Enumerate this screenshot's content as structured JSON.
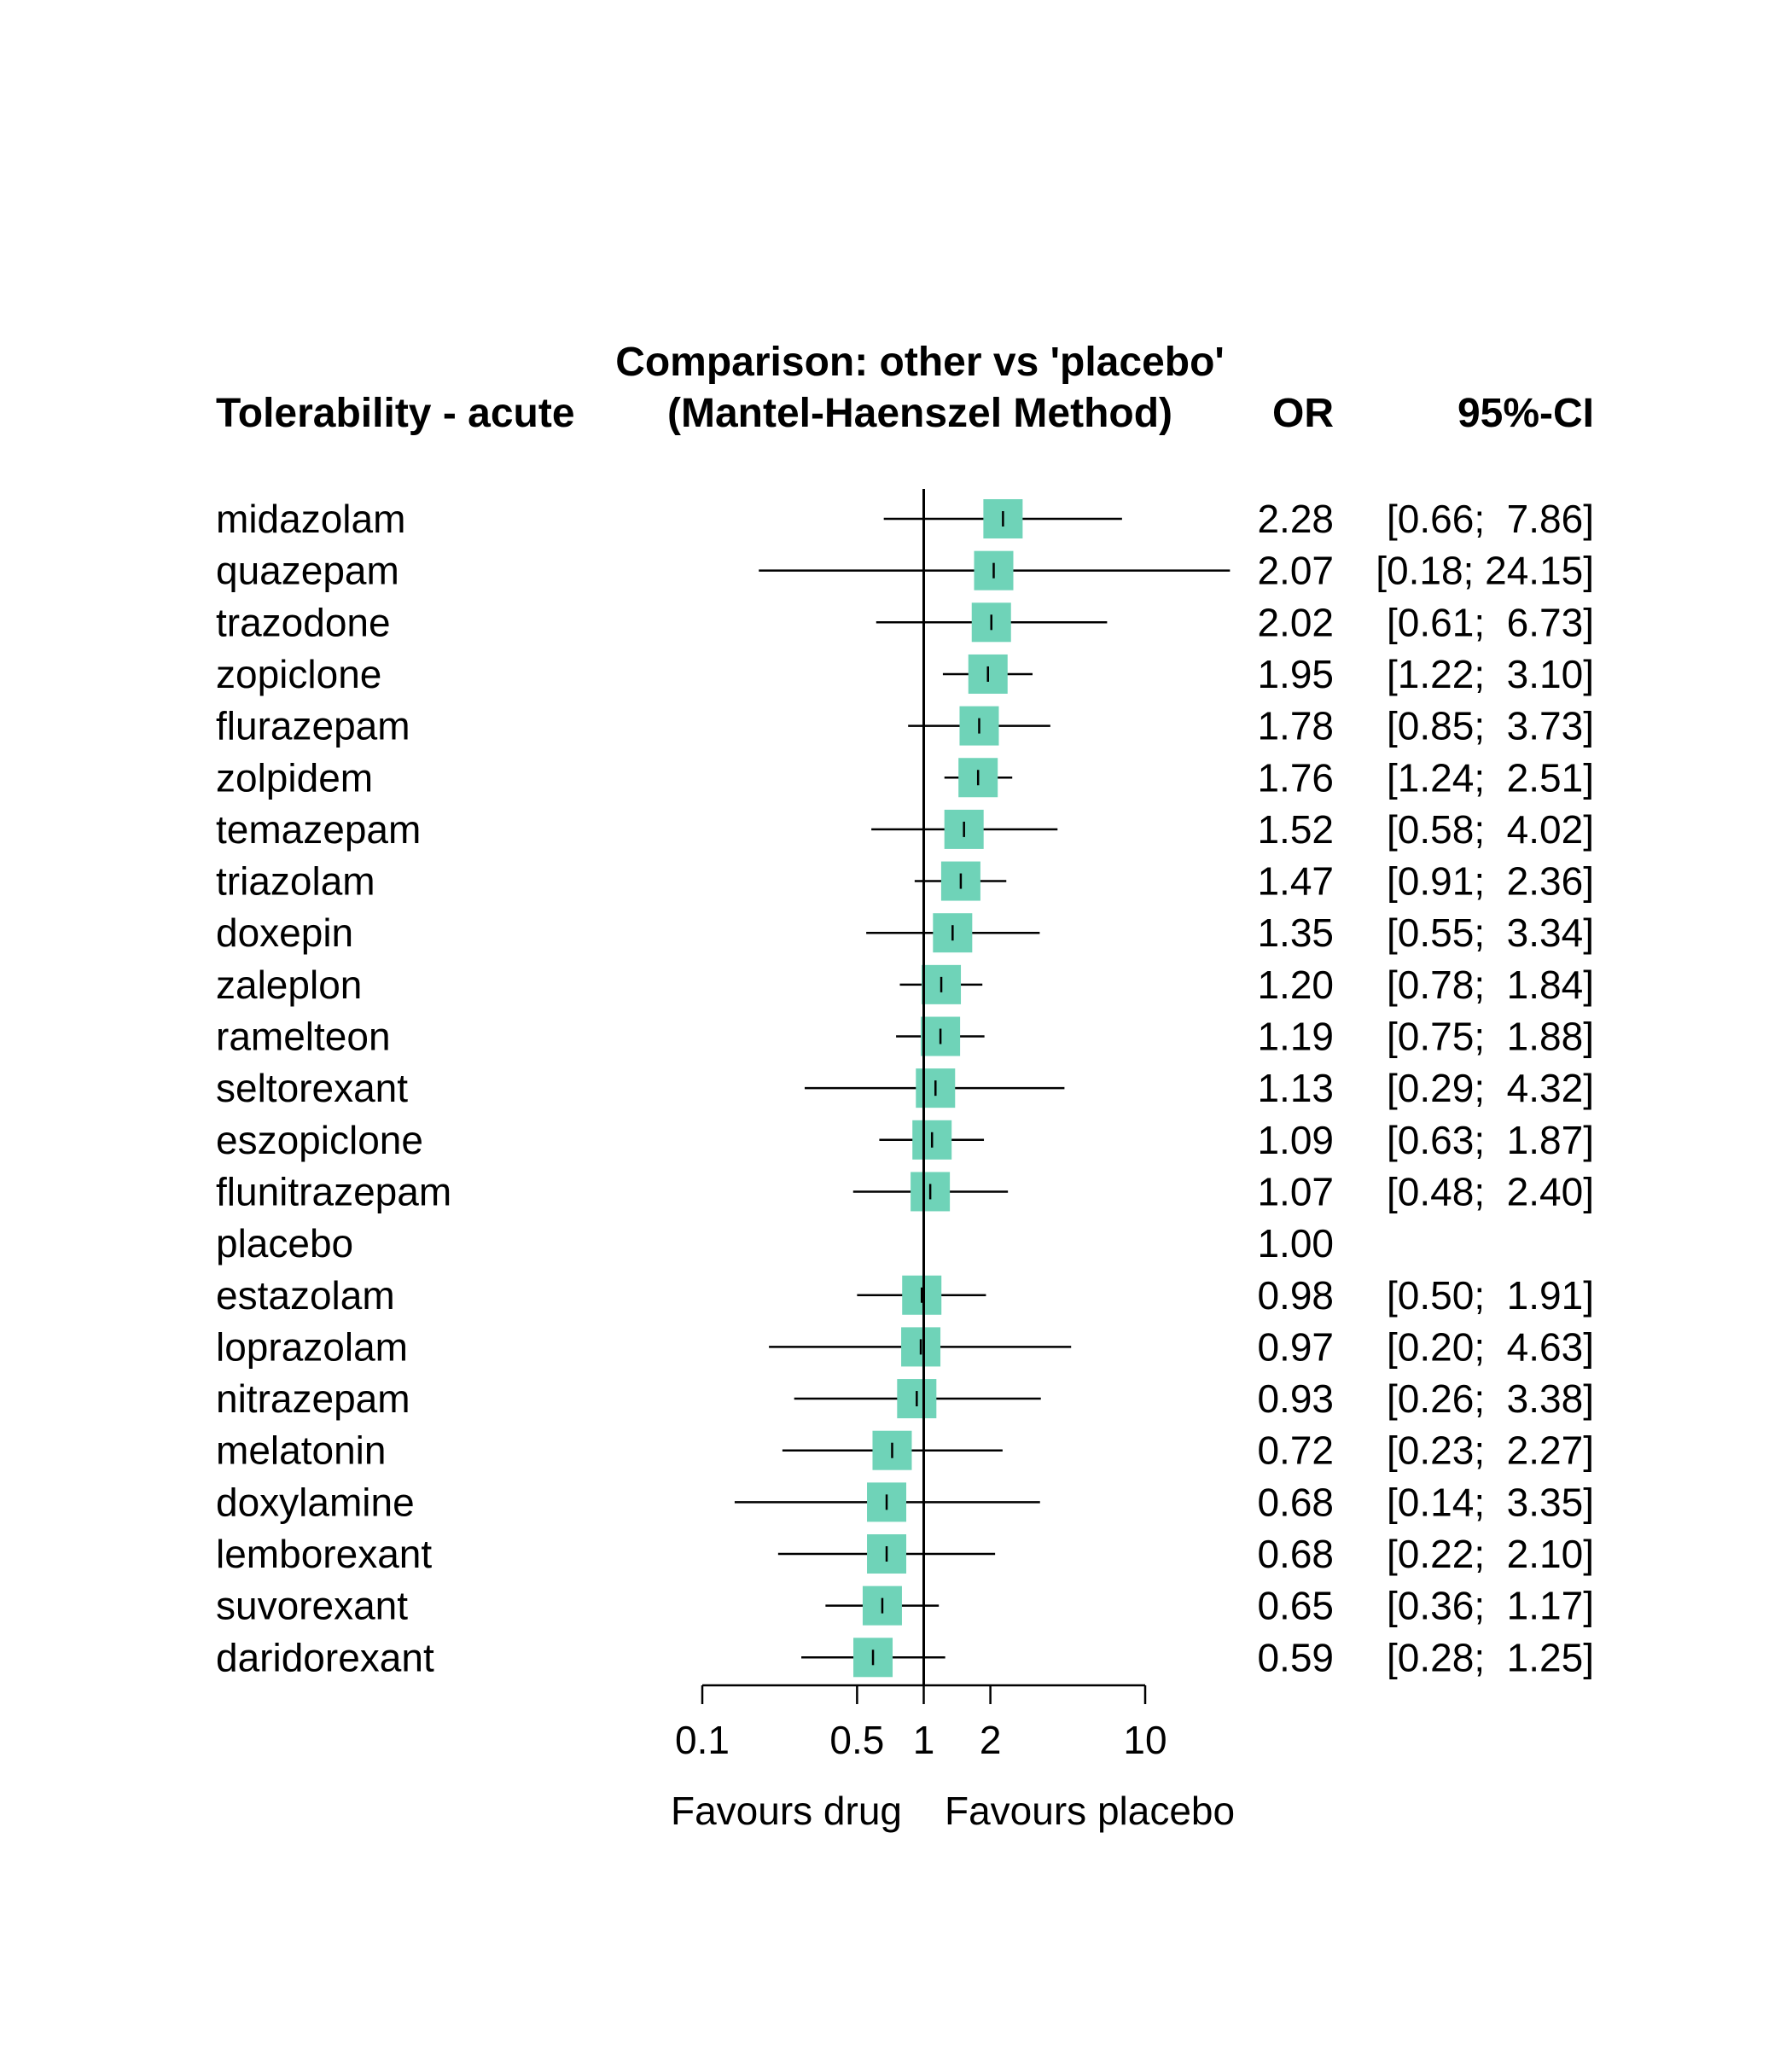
{
  "chart_data": {
    "type": "forest",
    "title": "Comparison: other vs 'placebo'",
    "subtitle": "(Mantel-Haenszel Method)",
    "left_header": "Tolerability - acute",
    "or_header": "OR",
    "ci_header": "95%-CI",
    "x_scale": "log",
    "xlim": [
      0.1,
      10
    ],
    "x_ticks": [
      {
        "value": 0.1,
        "label": "0.1"
      },
      {
        "value": 0.5,
        "label": "0.5"
      },
      {
        "value": 1,
        "label": "1"
      },
      {
        "value": 2,
        "label": "2"
      },
      {
        "value": 10,
        "label": "10"
      }
    ],
    "reference_line": 1,
    "xlabel_left": "Favours drug",
    "xlabel_right": "Favours placebo",
    "box_color": "#6fd3b8",
    "rows": [
      {
        "name": "midazolam",
        "or": 2.28,
        "lower": 0.66,
        "upper": 7.86,
        "or_text": "2.28",
        "ci_text": "[0.66;  7.86]"
      },
      {
        "name": "quazepam",
        "or": 2.07,
        "lower": 0.18,
        "upper": 24.15,
        "or_text": "2.07",
        "ci_text": "[0.18; 24.15]"
      },
      {
        "name": "trazodone",
        "or": 2.02,
        "lower": 0.61,
        "upper": 6.73,
        "or_text": "2.02",
        "ci_text": "[0.61;  6.73]"
      },
      {
        "name": "zopiclone",
        "or": 1.95,
        "lower": 1.22,
        "upper": 3.1,
        "or_text": "1.95",
        "ci_text": "[1.22;  3.10]"
      },
      {
        "name": "flurazepam",
        "or": 1.78,
        "lower": 0.85,
        "upper": 3.73,
        "or_text": "1.78",
        "ci_text": "[0.85;  3.73]"
      },
      {
        "name": "zolpidem",
        "or": 1.76,
        "lower": 1.24,
        "upper": 2.51,
        "or_text": "1.76",
        "ci_text": "[1.24;  2.51]"
      },
      {
        "name": "temazepam",
        "or": 1.52,
        "lower": 0.58,
        "upper": 4.02,
        "or_text": "1.52",
        "ci_text": "[0.58;  4.02]"
      },
      {
        "name": "triazolam",
        "or": 1.47,
        "lower": 0.91,
        "upper": 2.36,
        "or_text": "1.47",
        "ci_text": "[0.91;  2.36]"
      },
      {
        "name": "doxepin",
        "or": 1.35,
        "lower": 0.55,
        "upper": 3.34,
        "or_text": "1.35",
        "ci_text": "[0.55;  3.34]"
      },
      {
        "name": "zaleplon",
        "or": 1.2,
        "lower": 0.78,
        "upper": 1.84,
        "or_text": "1.20",
        "ci_text": "[0.78;  1.84]"
      },
      {
        "name": "ramelteon",
        "or": 1.19,
        "lower": 0.75,
        "upper": 1.88,
        "or_text": "1.19",
        "ci_text": "[0.75;  1.88]"
      },
      {
        "name": "seltorexant",
        "or": 1.13,
        "lower": 0.29,
        "upper": 4.32,
        "or_text": "1.13",
        "ci_text": "[0.29;  4.32]"
      },
      {
        "name": "eszopiclone",
        "or": 1.09,
        "lower": 0.63,
        "upper": 1.87,
        "or_text": "1.09",
        "ci_text": "[0.63;  1.87]"
      },
      {
        "name": "flunitrazepam",
        "or": 1.07,
        "lower": 0.48,
        "upper": 2.4,
        "or_text": "1.07",
        "ci_text": "[0.48;  2.40]"
      },
      {
        "name": "placebo",
        "or": 1.0,
        "lower": null,
        "upper": null,
        "or_text": "1.00",
        "ci_text": ""
      },
      {
        "name": "estazolam",
        "or": 0.98,
        "lower": 0.5,
        "upper": 1.91,
        "or_text": "0.98",
        "ci_text": "[0.50;  1.91]"
      },
      {
        "name": "loprazolam",
        "or": 0.97,
        "lower": 0.2,
        "upper": 4.63,
        "or_text": "0.97",
        "ci_text": "[0.20;  4.63]"
      },
      {
        "name": "nitrazepam",
        "or": 0.93,
        "lower": 0.26,
        "upper": 3.38,
        "or_text": "0.93",
        "ci_text": "[0.26;  3.38]"
      },
      {
        "name": "melatonin",
        "or": 0.72,
        "lower": 0.23,
        "upper": 2.27,
        "or_text": "0.72",
        "ci_text": "[0.23;  2.27]"
      },
      {
        "name": "doxylamine",
        "or": 0.68,
        "lower": 0.14,
        "upper": 3.35,
        "or_text": "0.68",
        "ci_text": "[0.14;  3.35]"
      },
      {
        "name": "lemborexant",
        "or": 0.68,
        "lower": 0.22,
        "upper": 2.1,
        "or_text": "0.68",
        "ci_text": "[0.22;  2.10]"
      },
      {
        "name": "suvorexant",
        "or": 0.65,
        "lower": 0.36,
        "upper": 1.17,
        "or_text": "0.65",
        "ci_text": "[0.36;  1.17]"
      },
      {
        "name": "daridorexant",
        "or": 0.59,
        "lower": 0.28,
        "upper": 1.25,
        "or_text": "0.59",
        "ci_text": "[0.28;  1.25]"
      }
    ]
  }
}
